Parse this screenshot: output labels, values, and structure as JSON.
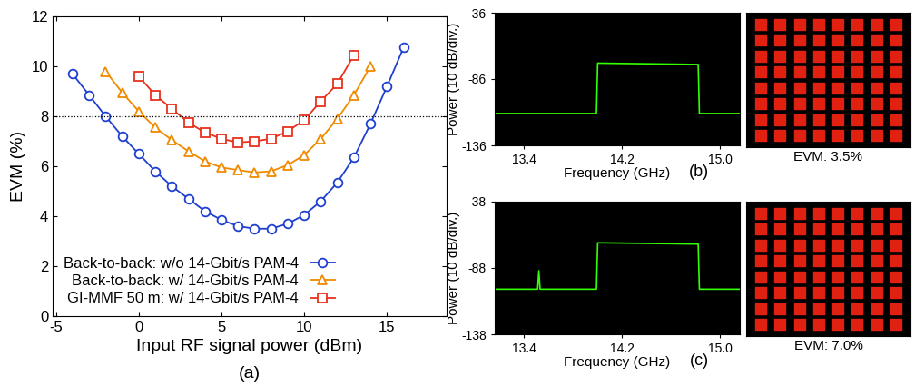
{
  "chart_data": [
    {
      "type": "line",
      "panel_label": "(a)",
      "xlabel": "Input RF signal power (dBm)",
      "ylabel": "EVM (%)",
      "xlim": [
        -5.2,
        18.6
      ],
      "xticks": [
        -5,
        0,
        5,
        10,
        15
      ],
      "ylim": [
        0,
        12
      ],
      "yticks": [
        0,
        2,
        4,
        6,
        8,
        10,
        12
      ],
      "threshold": 8,
      "grid": false,
      "legend": "lower left",
      "series": [
        {
          "name": "Back-to-back: w/o 14-Gbit/s PAM-4",
          "color": "#1f3fd0",
          "marker": "circle",
          "line_style": "solid",
          "x": [
            -4,
            -3,
            -2,
            -1,
            0,
            1,
            2,
            3,
            4,
            5,
            6,
            7,
            8,
            9,
            10,
            11,
            12,
            13,
            14,
            15,
            16
          ],
          "values": [
            9.7,
            8.85,
            8.0,
            7.2,
            6.5,
            5.8,
            5.2,
            4.7,
            4.2,
            3.85,
            3.6,
            3.5,
            3.5,
            3.7,
            4.05,
            4.6,
            5.35,
            6.35,
            7.7,
            9.2,
            10.75
          ]
        },
        {
          "name": "Back-to-back: w/ 14-Gbit/s PAM-4",
          "color": "#f08a00",
          "marker": "triangle",
          "line_style": "solid",
          "x": [
            -2,
            -1,
            0,
            1,
            2,
            3,
            4,
            5,
            6,
            7,
            8,
            9,
            10,
            11,
            12,
            13,
            14
          ],
          "values": [
            9.8,
            8.95,
            8.2,
            7.55,
            7.05,
            6.6,
            6.2,
            5.95,
            5.85,
            5.75,
            5.8,
            6.05,
            6.45,
            7.1,
            7.9,
            8.85,
            10.0
          ]
        },
        {
          "name": "GI-MMF 50 m: w/ 14-Gbit/s PAM-4",
          "color": "#e8301e",
          "marker": "square",
          "line_style": "solid",
          "x": [
            0,
            1,
            2,
            3,
            4,
            5,
            6,
            7,
            8,
            9,
            10,
            11,
            12,
            13
          ],
          "values": [
            9.6,
            8.85,
            8.3,
            7.75,
            7.35,
            7.1,
            6.95,
            7.0,
            7.1,
            7.4,
            7.85,
            8.6,
            9.3,
            10.45
          ]
        }
      ]
    },
    {
      "type": "line",
      "panel_label": "(b)",
      "xlabel": "Frequency (GHz)",
      "ylabel": "Power (10 dB/div.)",
      "xlim": [
        13.16,
        15.16
      ],
      "xticks": [
        13.4,
        14.2,
        15.0
      ],
      "ylim": [
        -136,
        -36
      ],
      "yticks": [
        -136,
        -86,
        -36
      ],
      "grid": false,
      "series": [
        {
          "name": null,
          "color": "#33ff00",
          "line_style": "solid",
          "x": [
            13.16,
            13.99,
            14.0,
            14.82,
            14.83,
            15.16
          ],
          "values": [
            -112,
            -112,
            -74,
            -75,
            -112,
            -112
          ]
        }
      ]
    },
    {
      "type": "scatter",
      "xlabel": "EVM: 3.5%",
      "color": "#e02010",
      "marker": "square",
      "tick_labels": false,
      "xlim": [
        -8.5,
        8.5
      ],
      "ylim": [
        -8.5,
        8.5
      ],
      "x": [
        -7,
        -5,
        -3,
        -1,
        1,
        3,
        5,
        7,
        -7,
        -5,
        -3,
        -1,
        1,
        3,
        5,
        7,
        -7,
        -5,
        -3,
        -1,
        1,
        3,
        5,
        7,
        -7,
        -5,
        -3,
        -1,
        1,
        3,
        5,
        7,
        -7,
        -5,
        -3,
        -1,
        1,
        3,
        5,
        7,
        -7,
        -5,
        -3,
        -1,
        1,
        3,
        5,
        7,
        -7,
        -5,
        -3,
        -1,
        1,
        3,
        5,
        7,
        -7,
        -5,
        -3,
        -1,
        1,
        3,
        5,
        7
      ],
      "values": [
        7,
        7,
        7,
        7,
        7,
        7,
        7,
        7,
        5,
        5,
        5,
        5,
        5,
        5,
        5,
        5,
        3,
        3,
        3,
        3,
        3,
        3,
        3,
        3,
        1,
        1,
        1,
        1,
        1,
        1,
        1,
        1,
        -1,
        -1,
        -1,
        -1,
        -1,
        -1,
        -1,
        -1,
        -3,
        -3,
        -3,
        -3,
        -3,
        -3,
        -3,
        -3,
        -5,
        -5,
        -5,
        -5,
        -5,
        -5,
        -5,
        -5,
        -7,
        -7,
        -7,
        -7,
        -7,
        -7,
        -7,
        -7
      ]
    },
    {
      "type": "line",
      "panel_label": "(c)",
      "xlabel": "Frequency (GHz)",
      "ylabel": "Power (10 dB/div.)",
      "xlim": [
        13.16,
        15.16
      ],
      "xticks": [
        13.4,
        14.2,
        15.0
      ],
      "ylim": [
        -138,
        -38
      ],
      "yticks": [
        -138,
        -88,
        -38
      ],
      "grid": false,
      "series": [
        {
          "name": null,
          "color": "#33ff00",
          "line_style": "solid",
          "x": [
            13.16,
            13.51,
            13.52,
            13.53,
            13.99,
            14.0,
            14.82,
            14.83,
            15.16
          ],
          "values": [
            -104,
            -104,
            -90,
            -104,
            -104,
            -69,
            -70,
            -104,
            -104
          ]
        }
      ]
    },
    {
      "type": "scatter",
      "xlabel": "EVM: 7.0%",
      "color": "#e02010",
      "marker": "square",
      "tick_labels": false,
      "xlim": [
        -8.5,
        8.5
      ],
      "ylim": [
        -8.5,
        8.5
      ],
      "x": [
        -7,
        -5,
        -3,
        -1,
        1,
        3,
        5,
        7,
        -7,
        -5,
        -3,
        -1,
        1,
        3,
        5,
        7,
        -7,
        -5,
        -3,
        -1,
        1,
        3,
        5,
        7,
        -7,
        -5,
        -3,
        -1,
        1,
        3,
        5,
        7,
        -7,
        -5,
        -3,
        -1,
        1,
        3,
        5,
        7,
        -7,
        -5,
        -3,
        -1,
        1,
        3,
        5,
        7,
        -7,
        -5,
        -3,
        -1,
        1,
        3,
        5,
        7,
        -7,
        -5,
        -3,
        -1,
        1,
        3,
        5,
        7
      ],
      "values": [
        7,
        7,
        7,
        7,
        7,
        7,
        7,
        7,
        5,
        5,
        5,
        5,
        5,
        5,
        5,
        5,
        3,
        3,
        3,
        3,
        3,
        3,
        3,
        3,
        1,
        1,
        1,
        1,
        1,
        1,
        1,
        1,
        -1,
        -1,
        -1,
        -1,
        -1,
        -1,
        -1,
        -1,
        -3,
        -3,
        -3,
        -3,
        -3,
        -3,
        -3,
        -3,
        -5,
        -5,
        -5,
        -5,
        -5,
        -5,
        -5,
        -5,
        -7,
        -7,
        -7,
        -7,
        -7,
        -7,
        -7,
        -7
      ]
    }
  ]
}
